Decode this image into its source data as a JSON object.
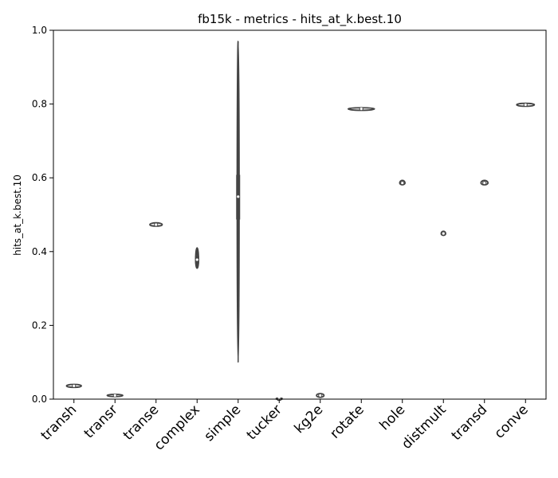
{
  "chart_data": {
    "type": "violin",
    "title": "fb15k - metrics - hits_at_k.best.10",
    "xlabel": "",
    "ylabel": "hits_at_k.best.10",
    "ylim": [
      0.0,
      1.0
    ],
    "yticks": [
      "0.0",
      "0.2",
      "0.4",
      "0.6",
      "0.8",
      "1.0"
    ],
    "grid": false,
    "fill_color": "#ffffff",
    "line_color": "#444444",
    "categories": [
      "transh",
      "transr",
      "transe",
      "complex",
      "simple",
      "tucker",
      "kg2e",
      "rotate",
      "hole",
      "distmult",
      "transd",
      "conve"
    ],
    "series": [
      {
        "category": "transh",
        "min": 0.032,
        "q1": 0.034,
        "median": 0.036,
        "q3": 0.038,
        "max": 0.04,
        "half_width": 0.36
      },
      {
        "category": "transr",
        "min": 0.007,
        "q1": 0.008,
        "median": 0.01,
        "q3": 0.012,
        "max": 0.013,
        "half_width": 0.38
      },
      {
        "category": "transe",
        "min": 0.469,
        "q1": 0.471,
        "median": 0.473,
        "q3": 0.476,
        "max": 0.478,
        "half_width": 0.3
      },
      {
        "category": "complex",
        "min": 0.355,
        "q1": 0.368,
        "median": 0.378,
        "q3": 0.388,
        "max": 0.41,
        "half_width": 0.07
      },
      {
        "category": "simple",
        "min": 0.1,
        "q1": 0.487,
        "median": 0.549,
        "q3": 0.608,
        "max": 0.97,
        "half_width": 0.03
      },
      {
        "category": "tucker",
        "min": 0.0,
        "q1": 0.0,
        "median": 0.001,
        "q3": 0.002,
        "max": 0.004,
        "half_width": 0.12
      },
      {
        "category": "kg2e",
        "min": 0.005,
        "q1": 0.007,
        "median": 0.01,
        "q3": 0.013,
        "max": 0.015,
        "half_width": 0.18
      },
      {
        "category": "rotate",
        "min": 0.783,
        "q1": 0.785,
        "median": 0.787,
        "q3": 0.789,
        "max": 0.79,
        "half_width": 0.64
      },
      {
        "category": "hole",
        "min": 0.581,
        "q1": 0.583,
        "median": 0.586,
        "q3": 0.59,
        "max": 0.593,
        "half_width": 0.13
      },
      {
        "category": "distmult",
        "min": 0.444,
        "q1": 0.446,
        "median": 0.449,
        "q3": 0.452,
        "max": 0.455,
        "half_width": 0.11
      },
      {
        "category": "transd",
        "min": 0.581,
        "q1": 0.583,
        "median": 0.586,
        "q3": 0.59,
        "max": 0.593,
        "half_width": 0.17
      },
      {
        "category": "conve",
        "min": 0.794,
        "q1": 0.796,
        "median": 0.798,
        "q3": 0.8,
        "max": 0.802,
        "half_width": 0.43
      }
    ]
  }
}
